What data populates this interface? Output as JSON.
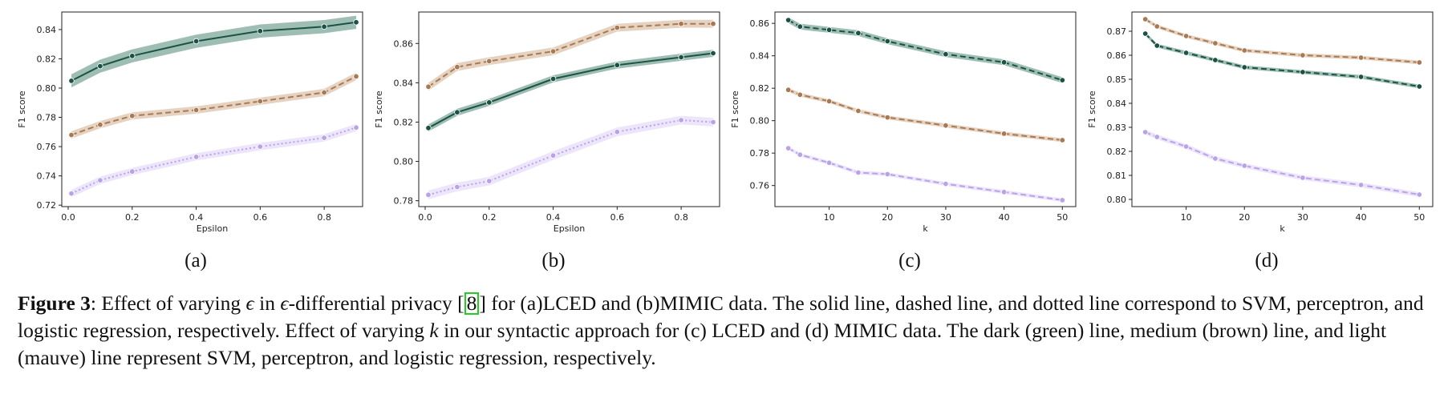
{
  "colors": {
    "svm": "#1b5245",
    "perceptron": "#a87a54",
    "logistic": "#b9a2e8",
    "svm_band": "#7ea79a",
    "perceptron_band": "#ddc3ac",
    "logistic_band": "#e6dcfa",
    "ref_box": "#22cc22"
  },
  "chart_data": [
    {
      "id": "a",
      "type": "line",
      "panel_label": "(a)",
      "xlabel": "Epsilon",
      "ylabel": "F1 score",
      "xlim": [
        -0.02,
        0.92
      ],
      "ylim": [
        0.719,
        0.852
      ],
      "xticks": [
        "0.0",
        "0.2",
        "0.4",
        "0.6",
        "0.8"
      ],
      "yticks": [
        "0.72",
        "0.74",
        "0.76",
        "0.78",
        "0.80",
        "0.82",
        "0.84"
      ],
      "grid": false,
      "x": [
        0.01,
        0.1,
        0.2,
        0.4,
        0.6,
        0.8,
        0.9
      ],
      "series": [
        {
          "key": "svm",
          "style": "solid",
          "values": [
            0.805,
            0.815,
            0.822,
            0.832,
            0.839,
            0.842,
            0.845
          ],
          "band": 0.0045
        },
        {
          "key": "perceptron",
          "style": "dashed",
          "values": [
            0.768,
            0.775,
            0.781,
            0.785,
            0.791,
            0.797,
            0.808
          ],
          "band": 0.0025
        },
        {
          "key": "logistic",
          "style": "dotted",
          "values": [
            0.728,
            0.737,
            0.743,
            0.753,
            0.76,
            0.766,
            0.773
          ],
          "band": 0.0025
        }
      ]
    },
    {
      "id": "b",
      "type": "line",
      "panel_label": "(b)",
      "xlabel": "Epsilon",
      "ylabel": "F1 score",
      "xlim": [
        -0.02,
        0.92
      ],
      "ylim": [
        0.777,
        0.876
      ],
      "xticks": [
        "0.0",
        "0.2",
        "0.4",
        "0.6",
        "0.8"
      ],
      "yticks": [
        "0.78",
        "0.80",
        "0.82",
        "0.84",
        "0.86"
      ],
      "grid": false,
      "x": [
        0.01,
        0.1,
        0.2,
        0.4,
        0.6,
        0.8,
        0.9
      ],
      "series": [
        {
          "key": "svm",
          "style": "solid",
          "values": [
            0.817,
            0.825,
            0.83,
            0.842,
            0.849,
            0.853,
            0.855
          ],
          "band": 0.0018
        },
        {
          "key": "perceptron",
          "style": "dashed",
          "values": [
            0.838,
            0.848,
            0.851,
            0.856,
            0.868,
            0.87,
            0.87
          ],
          "band": 0.002
        },
        {
          "key": "logistic",
          "style": "dotted",
          "values": [
            0.783,
            0.787,
            0.79,
            0.803,
            0.815,
            0.821,
            0.82
          ],
          "band": 0.0022
        }
      ]
    },
    {
      "id": "c",
      "type": "line",
      "panel_label": "(c)",
      "xlabel": "k",
      "ylabel": "F1 score",
      "xlim": [
        0.7,
        52.3
      ],
      "ylim": [
        0.747,
        0.867
      ],
      "xticks": [
        "10",
        "20",
        "30",
        "40",
        "50"
      ],
      "yticks": [
        "0.76",
        "0.78",
        "0.80",
        "0.82",
        "0.84",
        "0.86"
      ],
      "grid": false,
      "x": [
        3,
        5,
        10,
        15,
        20,
        30,
        40,
        50
      ],
      "series": [
        {
          "key": "svm",
          "style": "dashed",
          "values": [
            0.862,
            0.858,
            0.856,
            0.854,
            0.849,
            0.841,
            0.836,
            0.825
          ],
          "band": 0.0018
        },
        {
          "key": "perceptron",
          "style": "dashed",
          "values": [
            0.819,
            0.816,
            0.812,
            0.806,
            0.802,
            0.797,
            0.792,
            0.788
          ],
          "band": 0.0012
        },
        {
          "key": "logistic",
          "style": "dashed",
          "values": [
            0.783,
            0.779,
            0.774,
            0.768,
            0.767,
            0.761,
            0.756,
            0.751
          ],
          "band": 0.0012
        }
      ]
    },
    {
      "id": "d",
      "type": "line",
      "panel_label": "(d)",
      "xlabel": "k",
      "ylabel": "F1 score",
      "xlim": [
        0.7,
        52.3
      ],
      "ylim": [
        0.797,
        0.878
      ],
      "xticks": [
        "10",
        "20",
        "30",
        "40",
        "50"
      ],
      "yticks": [
        "0.80",
        "0.81",
        "0.82",
        "0.83",
        "0.84",
        "0.85",
        "0.86",
        "0.87"
      ],
      "grid": false,
      "x": [
        3,
        5,
        10,
        15,
        20,
        30,
        40,
        50
      ],
      "series": [
        {
          "key": "svm",
          "style": "dashed",
          "values": [
            0.869,
            0.864,
            0.861,
            0.858,
            0.855,
            0.853,
            0.851,
            0.847
          ],
          "band": 0.0008
        },
        {
          "key": "perceptron",
          "style": "dashed",
          "values": [
            0.875,
            0.872,
            0.868,
            0.865,
            0.862,
            0.86,
            0.859,
            0.857
          ],
          "band": 0.0008
        },
        {
          "key": "logistic",
          "style": "dashed",
          "values": [
            0.828,
            0.826,
            0.822,
            0.817,
            0.814,
            0.809,
            0.806,
            0.802
          ],
          "band": 0.001
        }
      ]
    }
  ],
  "caption": {
    "label": "Figure 3",
    "part1": ": Effect of varying ",
    "epsilon": "ϵ",
    "part2": " in ",
    "part3": "-differential privacy ",
    "ref_open": "[",
    "ref_num": "8",
    "ref_close": "]",
    "part4": " for (a)LCED and (b)MIMIC data. The solid line, dashed line, and dotted line correspond to SVM, perceptron, and logistic regression, respectively. Effect of varying ",
    "k": "k",
    "part5": " in our syntactic approach for (c) LCED and (d) MIMIC data. The dark (green) line, medium (brown) line, and light (mauve) line represent SVM, perceptron, and logistic regression, respectively."
  }
}
